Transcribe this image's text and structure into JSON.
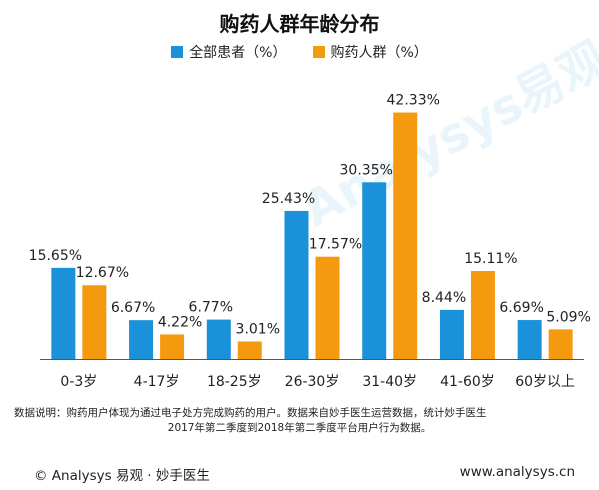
{
  "watermark": "Analysys易观",
  "chart_data": {
    "type": "bar",
    "title": "购药人群年龄分布",
    "categories": [
      "0-3岁",
      "4-17岁",
      "18-25岁",
      "26-30岁",
      "31-40岁",
      "41-60岁",
      "60岁以上"
    ],
    "series": [
      {
        "name": "全部患者（%）",
        "color": "#1a91d8",
        "values": [
          15.65,
          6.67,
          6.77,
          25.43,
          30.35,
          8.44,
          6.69
        ]
      },
      {
        "name": "购药人群（%）",
        "color": "#f59a0e",
        "values": [
          12.67,
          4.22,
          3.01,
          17.57,
          42.33,
          15.11,
          5.09
        ]
      }
    ],
    "data_labels": [
      [
        "15.65%",
        "6.67%",
        "6.77%",
        "25.43%",
        "30.35%",
        "8.44%",
        "6.69%"
      ],
      [
        "12.67%",
        "4.22%",
        "3.01%",
        "17.57%",
        "42.33%",
        "15.11%",
        "5.09%"
      ]
    ],
    "xlabel": "",
    "ylabel": "",
    "ylim": [
      0,
      45
    ],
    "grid": false,
    "legend_position": "top-center"
  },
  "note": {
    "line1": "数据说明：购药用户体现为通过电子处方完成购药的用户。数据来自妙手医生运营数据，统计妙手医生",
    "line2": "2017年第二季度到2018年第二季度平台用户行为数据。"
  },
  "footer": {
    "left": "© Analysys 易观 · 妙手医生",
    "right": "www.analysys.cn"
  }
}
